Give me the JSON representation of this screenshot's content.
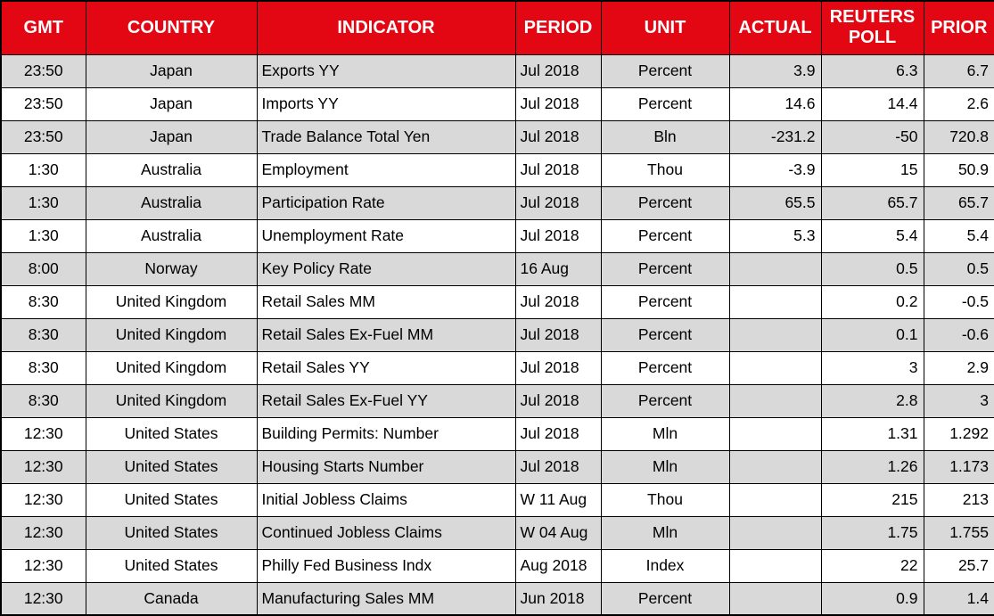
{
  "table": {
    "colors": {
      "header_bg": "#e30613",
      "header_text": "#ffffff",
      "row_bg": "#ffffff",
      "row_alt_bg": "#d9d9d9",
      "border": "#000000"
    },
    "columns": [
      {
        "key": "gmt",
        "label": "GMT"
      },
      {
        "key": "country",
        "label": "COUNTRY"
      },
      {
        "key": "indicator",
        "label": "INDICATOR"
      },
      {
        "key": "period",
        "label": "PERIOD"
      },
      {
        "key": "unit",
        "label": "UNIT"
      },
      {
        "key": "actual",
        "label": "ACTUAL"
      },
      {
        "key": "poll",
        "label": "REUTERS POLL"
      },
      {
        "key": "prior",
        "label": "PRIOR"
      }
    ],
    "rows": [
      {
        "gmt": "23:50",
        "country": "Japan",
        "indicator": "Exports YY",
        "period": "Jul 2018",
        "unit": "Percent",
        "actual": "3.9",
        "poll": "6.3",
        "prior": "6.7"
      },
      {
        "gmt": "23:50",
        "country": "Japan",
        "indicator": "Imports YY",
        "period": "Jul 2018",
        "unit": "Percent",
        "actual": "14.6",
        "poll": "14.4",
        "prior": "2.6"
      },
      {
        "gmt": "23:50",
        "country": "Japan",
        "indicator": "Trade Balance Total Yen",
        "period": "Jul 2018",
        "unit": "Bln",
        "actual": "-231.2",
        "poll": "-50",
        "prior": "720.8"
      },
      {
        "gmt": "1:30",
        "country": "Australia",
        "indicator": "Employment",
        "period": "Jul 2018",
        "unit": "Thou",
        "actual": "-3.9",
        "poll": "15",
        "prior": "50.9"
      },
      {
        "gmt": "1:30",
        "country": "Australia",
        "indicator": "Participation Rate",
        "period": "Jul 2018",
        "unit": "Percent",
        "actual": "65.5",
        "poll": "65.7",
        "prior": "65.7"
      },
      {
        "gmt": "1:30",
        "country": "Australia",
        "indicator": "Unemployment Rate",
        "period": "Jul 2018",
        "unit": "Percent",
        "actual": "5.3",
        "poll": "5.4",
        "prior": "5.4"
      },
      {
        "gmt": "8:00",
        "country": "Norway",
        "indicator": "Key Policy Rate",
        "period": "16 Aug",
        "unit": "Percent",
        "actual": "",
        "poll": "0.5",
        "prior": "0.5"
      },
      {
        "gmt": "8:30",
        "country": "United Kingdom",
        "indicator": "Retail Sales MM",
        "period": "Jul 2018",
        "unit": "Percent",
        "actual": "",
        "poll": "0.2",
        "prior": "-0.5"
      },
      {
        "gmt": "8:30",
        "country": "United Kingdom",
        "indicator": "Retail Sales Ex-Fuel MM",
        "period": "Jul 2018",
        "unit": "Percent",
        "actual": "",
        "poll": "0.1",
        "prior": "-0.6"
      },
      {
        "gmt": "8:30",
        "country": "United Kingdom",
        "indicator": "Retail Sales YY",
        "period": "Jul 2018",
        "unit": "Percent",
        "actual": "",
        "poll": "3",
        "prior": "2.9"
      },
      {
        "gmt": "8:30",
        "country": "United Kingdom",
        "indicator": "Retail Sales Ex-Fuel YY",
        "period": "Jul 2018",
        "unit": "Percent",
        "actual": "",
        "poll": "2.8",
        "prior": "3"
      },
      {
        "gmt": "12:30",
        "country": "United States",
        "indicator": "Building Permits: Number",
        "period": "Jul 2018",
        "unit": "Mln",
        "actual": "",
        "poll": "1.31",
        "prior": "1.292"
      },
      {
        "gmt": "12:30",
        "country": "United States",
        "indicator": "Housing Starts Number",
        "period": "Jul 2018",
        "unit": "Mln",
        "actual": "",
        "poll": "1.26",
        "prior": "1.173"
      },
      {
        "gmt": "12:30",
        "country": "United States",
        "indicator": "Initial Jobless Claims",
        "period": "W 11 Aug",
        "unit": "Thou",
        "actual": "",
        "poll": "215",
        "prior": "213"
      },
      {
        "gmt": "12:30",
        "country": "United States",
        "indicator": "Continued Jobless Claims",
        "period": "W 04 Aug",
        "unit": "Mln",
        "actual": "",
        "poll": "1.75",
        "prior": "1.755"
      },
      {
        "gmt": "12:30",
        "country": "United States",
        "indicator": "Philly Fed Business Indx",
        "period": "Aug 2018",
        "unit": "Index",
        "actual": "",
        "poll": "22",
        "prior": "25.7"
      },
      {
        "gmt": "12:30",
        "country": "Canada",
        "indicator": "Manufacturing Sales MM",
        "period": "Jun 2018",
        "unit": "Percent",
        "actual": "",
        "poll": "0.9",
        "prior": "1.4"
      }
    ]
  }
}
